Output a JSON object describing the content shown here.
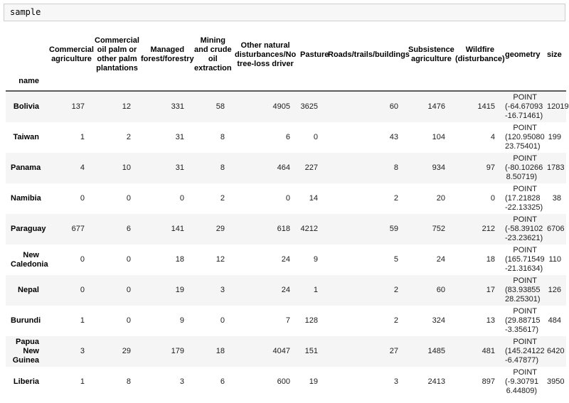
{
  "code_cell": {
    "text": "sample"
  },
  "colors": {
    "stripe_row_bg": "#f5f5f5",
    "code_cell_bg": "#f7f7f7",
    "header_rule": "#5c5c5c"
  },
  "table": {
    "index_name": "name",
    "columns": [
      "Commercial\nagriculture",
      "Commercial\noil palm or\nother palm\nplantations",
      "Managed\nforest/forestry",
      "Mining\nand crude\noil\nextraction",
      "Other natural\ndisturbances/No\ntree-loss driver",
      "Pasture",
      "Roads/trails/buildings",
      "Subsistence\nagriculture",
      "Wildfire\n(disturbance)",
      "geometry",
      "size"
    ],
    "rows": [
      {
        "name": "Bolivia",
        "values": [
          "137",
          "12",
          "331",
          "58",
          "4905",
          "3625",
          "60",
          "1476",
          "1415",
          "POINT\n(-64.67093\n-16.71461)",
          "12019"
        ]
      },
      {
        "name": "Taiwan",
        "values": [
          "1",
          "2",
          "31",
          "8",
          "6",
          "0",
          "43",
          "104",
          "4",
          "POINT\n(120.95080\n23.75401)",
          "199"
        ]
      },
      {
        "name": "Panama",
        "values": [
          "4",
          "10",
          "31",
          "8",
          "464",
          "227",
          "8",
          "934",
          "97",
          "POINT\n(-80.10266\n8.50719)",
          "1783"
        ]
      },
      {
        "name": "Namibia",
        "values": [
          "0",
          "0",
          "0",
          "2",
          "0",
          "14",
          "2",
          "20",
          "0",
          "POINT\n(17.21828\n-22.13325)",
          "38"
        ]
      },
      {
        "name": "Paraguay",
        "values": [
          "677",
          "6",
          "141",
          "29",
          "618",
          "4212",
          "59",
          "752",
          "212",
          "POINT\n(-58.39102\n-23.23621)",
          "6706"
        ]
      },
      {
        "name": "New\nCaledonia",
        "values": [
          "0",
          "0",
          "18",
          "12",
          "24",
          "9",
          "5",
          "24",
          "18",
          "POINT\n(165.71549\n-21.31634)",
          "110"
        ]
      },
      {
        "name": "Nepal",
        "values": [
          "0",
          "0",
          "19",
          "3",
          "24",
          "1",
          "2",
          "60",
          "17",
          "POINT\n(83.93855\n28.25301)",
          "126"
        ]
      },
      {
        "name": "Burundi",
        "values": [
          "1",
          "0",
          "9",
          "0",
          "7",
          "128",
          "2",
          "324",
          "13",
          "POINT\n(29.88715\n-3.35617)",
          "484"
        ]
      },
      {
        "name": "Papua\nNew\nGuinea",
        "values": [
          "3",
          "29",
          "179",
          "18",
          "4047",
          "151",
          "27",
          "1485",
          "481",
          "POINT\n(145.24122\n-6.47877)",
          "6420"
        ]
      },
      {
        "name": "Liberia",
        "values": [
          "1",
          "8",
          "3",
          "6",
          "600",
          "19",
          "3",
          "2413",
          "897",
          "POINT\n(-9.30791\n6.44809)",
          "3950"
        ]
      }
    ]
  }
}
